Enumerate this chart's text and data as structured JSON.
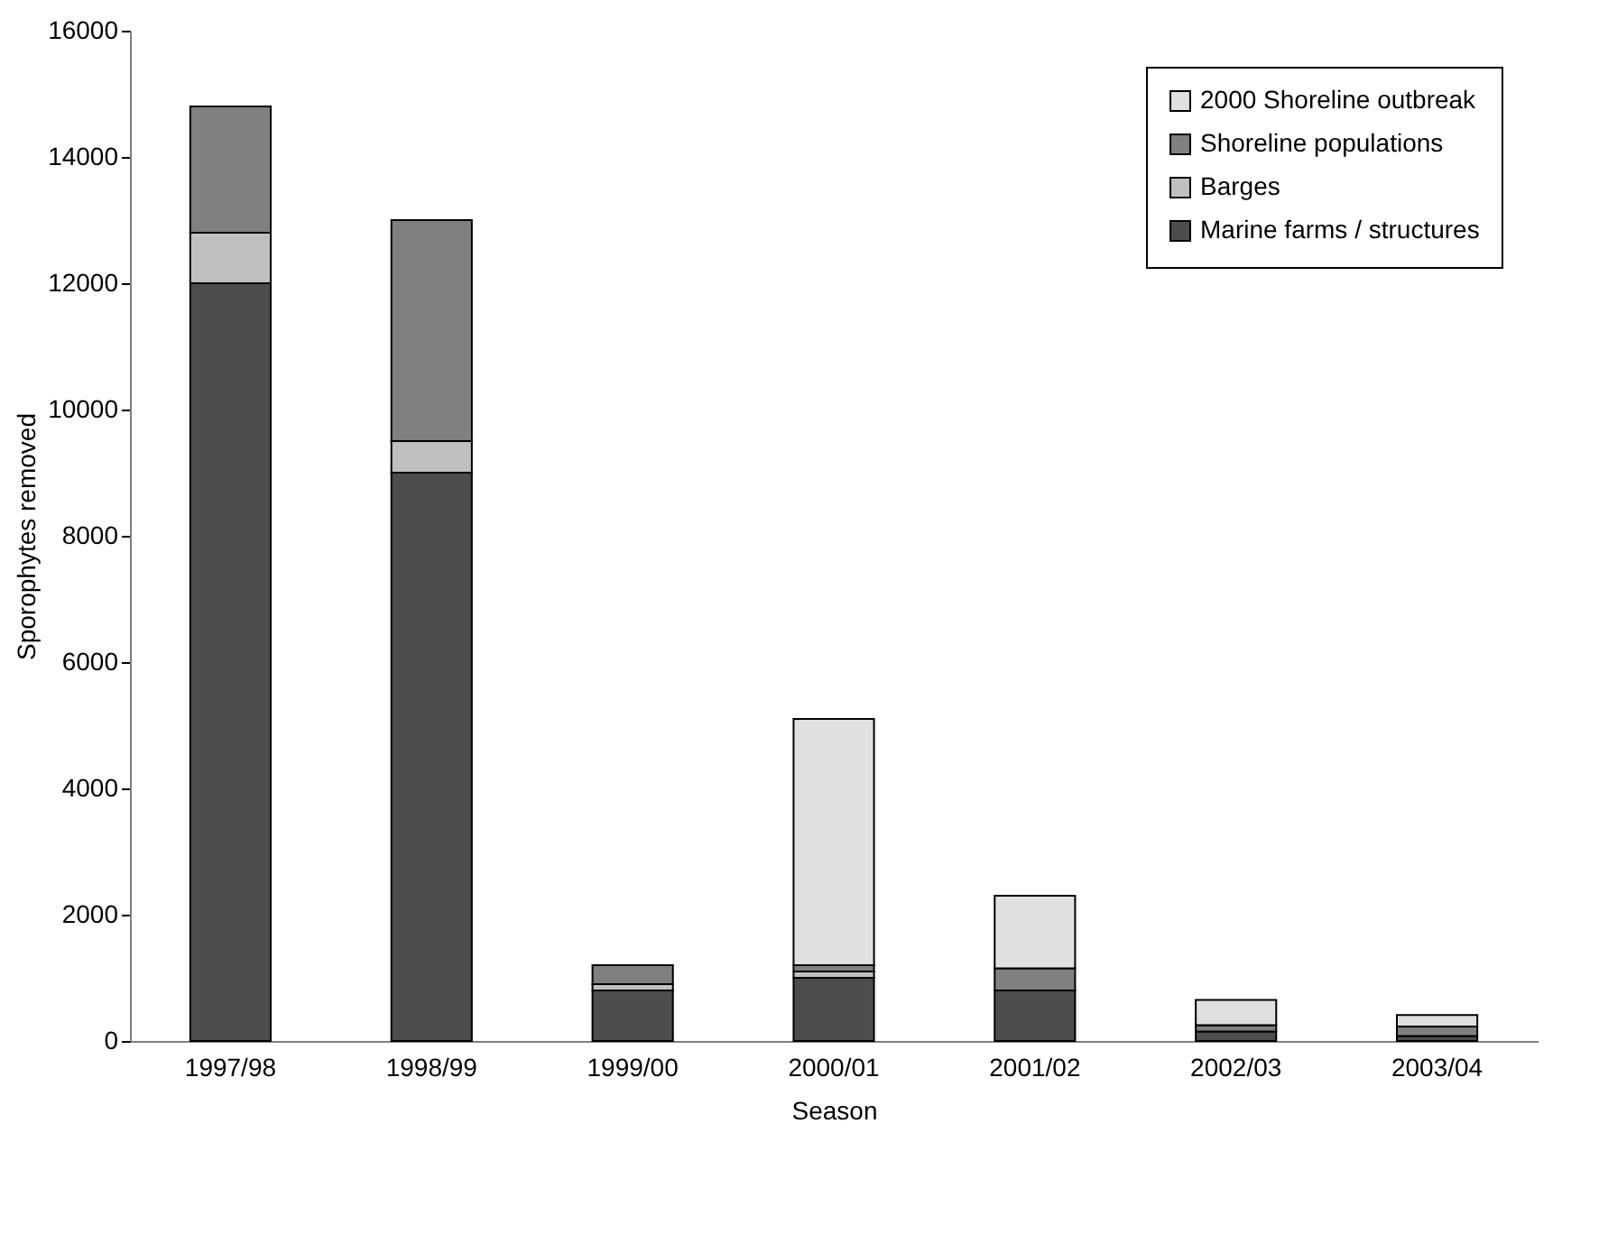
{
  "chart_data": {
    "type": "bar",
    "stacked": true,
    "xlabel": "Season",
    "ylabel": "Sporophytes removed",
    "categories": [
      "1997/98",
      "1998/99",
      "1999/00",
      "2000/01",
      "2001/02",
      "2002/03",
      "2003/04"
    ],
    "series": [
      {
        "name": "Marine farms / structures",
        "color": "#4d4d4d",
        "values": [
          12000,
          9000,
          800,
          1000,
          800,
          150,
          80
        ]
      },
      {
        "name": "Barges",
        "color": "#c0c0c0",
        "values": [
          800,
          500,
          100,
          100,
          null,
          null,
          null
        ]
      },
      {
        "name": "Shoreline populations",
        "color": "#808080",
        "values": [
          2000,
          3500,
          300,
          100,
          350,
          100,
          150
        ]
      },
      {
        "name": "2000 Shoreline outbreak",
        "color": "#e0e0e0",
        "values": [
          null,
          null,
          null,
          3900,
          1150,
          400,
          180
        ]
      }
    ],
    "ylim": [
      0,
      16000
    ],
    "yticks": [
      0,
      2000,
      4000,
      6000,
      8000,
      10000,
      12000,
      14000,
      16000
    ],
    "grid": false,
    "legend": "top right"
  }
}
